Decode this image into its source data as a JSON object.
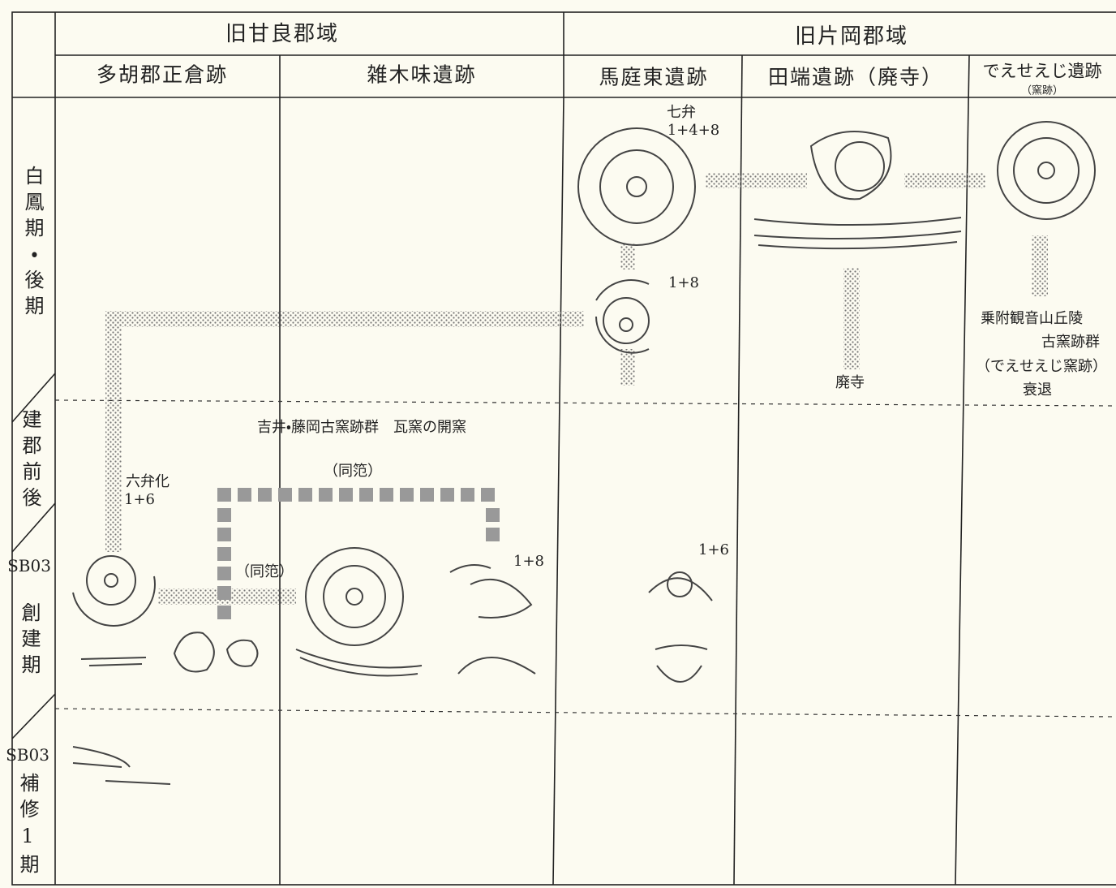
{
  "header": {
    "groups": [
      "旧甘良郡域",
      "旧片岡郡域"
    ],
    "sites": [
      {
        "name": "多胡郡正倉跡"
      },
      {
        "name": "雑木味遺跡"
      },
      {
        "name": "馬庭東遺跡"
      },
      {
        "name": "田端遺跡（廃寺）"
      },
      {
        "name": "でえせえじ遺跡",
        "note": "（窯跡）"
      }
    ]
  },
  "periods": [
    {
      "name": "白鳳期・後期"
    },
    {
      "name": "建郡前後"
    },
    {
      "code": "SB03",
      "name": "創建期"
    },
    {
      "code": "SB03",
      "name": "補修1期"
    }
  ],
  "annotations": [
    "七弁",
    "1+4+8",
    "1+8",
    "乗附観音山丘陵",
    "古窯跡群",
    "（でえせえじ窯跡）",
    "衰退",
    "廃寺",
    "吉井・藤岡古窯跡群　瓦窯の開窯",
    "（同笵）",
    "六弁化",
    "1+6",
    "（同笵）",
    "1+8",
    "1+6"
  ]
}
